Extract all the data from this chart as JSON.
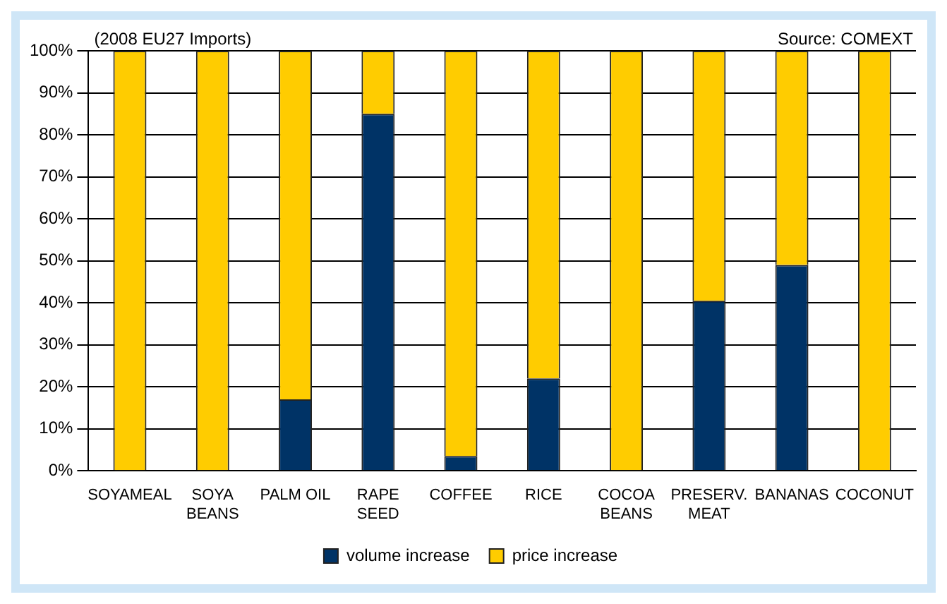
{
  "chart_data": {
    "type": "bar",
    "stacked": true,
    "categories": [
      "SOYAMEAL",
      "SOYA BEANS",
      "PALM OIL",
      "RAPE SEED",
      "COFFEE",
      "RICE",
      "COCOA BEANS",
      "PRESERV. MEAT",
      "BANANAS",
      "COCONUT"
    ],
    "series": [
      {
        "name": "volume increase",
        "color": "#003366",
        "values": [
          0,
          0,
          17,
          85,
          3.5,
          22,
          0,
          40.5,
          49,
          0
        ]
      },
      {
        "name": "price increase",
        "color": "#ffcc00",
        "values": [
          100,
          100,
          83,
          15,
          96.5,
          78,
          100,
          59.5,
          51,
          100
        ]
      }
    ],
    "ylim": [
      0,
      100
    ],
    "yticks": [
      {
        "value": 0,
        "label": "0%"
      },
      {
        "value": 10,
        "label": "10%"
      },
      {
        "value": 20,
        "label": "20%"
      },
      {
        "value": 30,
        "label": "30%"
      },
      {
        "value": 40,
        "label": "40%"
      },
      {
        "value": 50,
        "label": "50%"
      },
      {
        "value": 60,
        "label": "60%"
      },
      {
        "value": 70,
        "label": "70%"
      },
      {
        "value": 80,
        "label": "80%"
      },
      {
        "value": 90,
        "label": "90%"
      },
      {
        "value": 100,
        "label": "100%"
      }
    ],
    "grid": "y",
    "legend": "bottom",
    "annotations": [
      "(2008 EU27 Imports)",
      "Source: COMEXT"
    ]
  }
}
